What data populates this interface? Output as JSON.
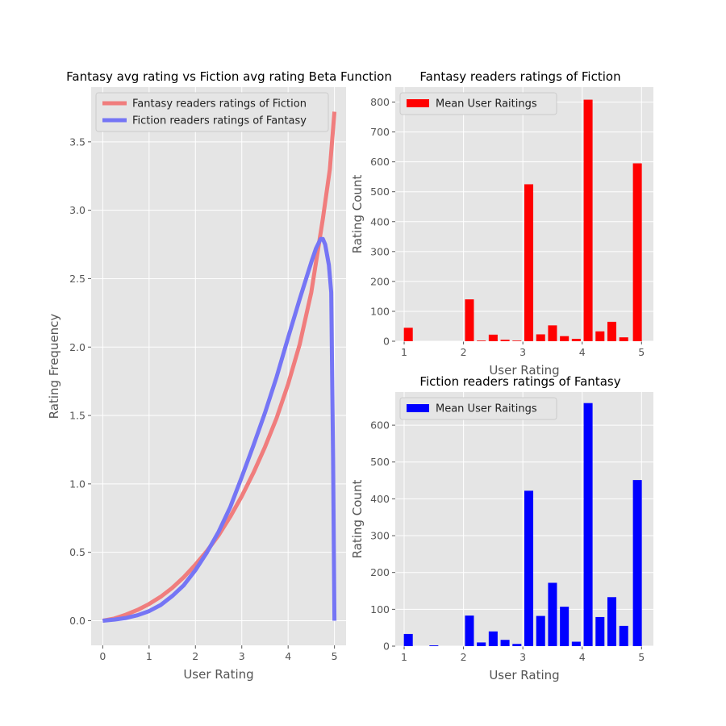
{
  "chart_data": [
    {
      "type": "line",
      "title": "Fantasy avg rating vs Fiction avg rating Beta Function",
      "xlabel": "User Rating",
      "ylabel": "Rating Frequency",
      "xlim": [
        -0.25,
        5.25
      ],
      "ylim": [
        -0.18,
        3.9
      ],
      "xticks": [
        "0",
        "1",
        "2",
        "3",
        "4",
        "5"
      ],
      "yticks": [
        "0.0",
        "0.5",
        "1.0",
        "1.5",
        "2.0",
        "2.5",
        "3.0",
        "3.5"
      ],
      "grid": true,
      "legend_position": "upper-left",
      "series": [
        {
          "name": "Fantasy readers ratings of Fiction",
          "color": "#f07d7d",
          "x": [
            0,
            0.25,
            0.5,
            0.75,
            1,
            1.25,
            1.5,
            1.75,
            2,
            2.25,
            2.5,
            2.75,
            3,
            3.25,
            3.5,
            3.75,
            4,
            4.25,
            4.5,
            4.75,
            4.9,
            5.0
          ],
          "y": [
            0,
            0.016,
            0.044,
            0.079,
            0.122,
            0.175,
            0.24,
            0.318,
            0.41,
            0.51,
            0.625,
            0.76,
            0.91,
            1.08,
            1.27,
            1.48,
            1.73,
            2.02,
            2.4,
            2.94,
            3.3,
            3.72
          ]
        },
        {
          "name": "Fiction readers ratings of Fantasy",
          "color": "#7575f5",
          "x": [
            0,
            0.25,
            0.5,
            0.75,
            1,
            1.25,
            1.5,
            1.75,
            2,
            2.25,
            2.5,
            2.75,
            3,
            3.25,
            3.5,
            3.75,
            4,
            4.25,
            4.5,
            4.6,
            4.7,
            4.75,
            4.8,
            4.88,
            4.93,
            4.97,
            5.0
          ],
          "y": [
            0,
            0.008,
            0.02,
            0.04,
            0.07,
            0.115,
            0.18,
            0.26,
            0.37,
            0.5,
            0.65,
            0.83,
            1.05,
            1.28,
            1.52,
            1.78,
            2.07,
            2.35,
            2.62,
            2.72,
            2.79,
            2.79,
            2.75,
            2.6,
            2.4,
            1.2,
            0.0
          ]
        }
      ]
    },
    {
      "type": "bar",
      "title": "Fantasy readers ratings of Fiction",
      "xlabel": "User Rating",
      "ylabel": "Rating Count",
      "xlim": [
        0.85,
        5.2
      ],
      "ylim": [
        0,
        850
      ],
      "xticks": [
        "1",
        "2",
        "3",
        "4",
        "5"
      ],
      "yticks": [
        "0",
        "100",
        "200",
        "300",
        "400",
        "500",
        "600",
        "700",
        "800"
      ],
      "grid": true,
      "legend_position": "upper-left",
      "series": [
        {
          "name": "Mean User Raitings",
          "color": "#ff0000",
          "x": [
            1.07,
            2.1,
            2.3,
            2.5,
            2.7,
            2.9,
            3.1,
            3.3,
            3.5,
            3.7,
            3.9,
            4.1,
            4.3,
            4.5,
            4.7,
            4.93
          ],
          "values": [
            45,
            140,
            2,
            22,
            5,
            2,
            525,
            23,
            53,
            17,
            8,
            808,
            33,
            65,
            13,
            595
          ]
        }
      ]
    },
    {
      "type": "bar",
      "title": "Fiction readers ratings of Fantasy",
      "xlabel": "User Rating",
      "ylabel": "Rating Count",
      "xlim": [
        0.85,
        5.2
      ],
      "ylim": [
        0,
        690
      ],
      "xticks": [
        "1",
        "2",
        "3",
        "4",
        "5"
      ],
      "yticks": [
        "0",
        "100",
        "200",
        "300",
        "400",
        "500",
        "600"
      ],
      "grid": true,
      "legend_position": "upper-left",
      "series": [
        {
          "name": "Mean User Raitings",
          "color": "#0000ff",
          "x": [
            1.07,
            1.5,
            2.1,
            2.3,
            2.5,
            2.7,
            2.9,
            3.1,
            3.3,
            3.5,
            3.7,
            3.9,
            4.1,
            4.3,
            4.5,
            4.7,
            4.93
          ],
          "values": [
            33,
            2,
            83,
            10,
            40,
            17,
            6,
            422,
            82,
            172,
            107,
            12,
            660,
            79,
            133,
            55,
            451
          ]
        }
      ]
    }
  ]
}
